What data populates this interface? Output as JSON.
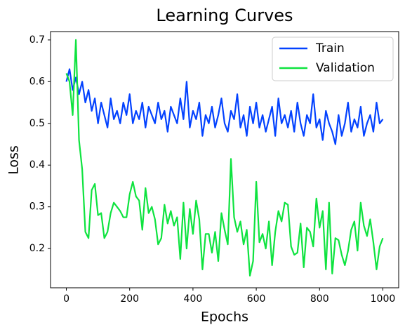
{
  "chart_data": {
    "type": "line",
    "title": "Learning Curves",
    "x_label": "Epochs",
    "y_label": "Loss",
    "x": [
      0,
      10,
      20,
      30,
      40,
      50,
      60,
      70,
      80,
      90,
      100,
      110,
      120,
      130,
      140,
      150,
      160,
      170,
      180,
      190,
      200,
      210,
      220,
      230,
      240,
      250,
      260,
      270,
      280,
      290,
      300,
      310,
      320,
      330,
      340,
      350,
      360,
      370,
      380,
      390,
      400,
      410,
      420,
      430,
      440,
      450,
      460,
      470,
      480,
      490,
      500,
      510,
      520,
      530,
      540,
      550,
      560,
      570,
      580,
      590,
      600,
      610,
      620,
      630,
      640,
      650,
      660,
      670,
      680,
      690,
      700,
      710,
      720,
      730,
      740,
      750,
      760,
      770,
      780,
      790,
      800,
      810,
      820,
      830,
      840,
      850,
      860,
      870,
      880,
      890,
      900,
      910,
      920,
      930,
      940,
      950,
      960,
      970,
      980,
      990,
      1000
    ],
    "series": [
      {
        "name": "Train",
        "color": "#0342ff",
        "values": [
          0.6,
          0.63,
          0.58,
          0.61,
          0.57,
          0.6,
          0.55,
          0.58,
          0.53,
          0.56,
          0.5,
          0.55,
          0.52,
          0.49,
          0.56,
          0.51,
          0.53,
          0.5,
          0.55,
          0.52,
          0.57,
          0.5,
          0.53,
          0.51,
          0.55,
          0.49,
          0.54,
          0.52,
          0.5,
          0.55,
          0.51,
          0.53,
          0.48,
          0.54,
          0.52,
          0.5,
          0.56,
          0.51,
          0.6,
          0.49,
          0.53,
          0.51,
          0.55,
          0.47,
          0.52,
          0.5,
          0.54,
          0.49,
          0.52,
          0.56,
          0.5,
          0.48,
          0.53,
          0.51,
          0.57,
          0.49,
          0.52,
          0.47,
          0.54,
          0.5,
          0.55,
          0.49,
          0.52,
          0.48,
          0.51,
          0.54,
          0.47,
          0.56,
          0.5,
          0.52,
          0.49,
          0.53,
          0.48,
          0.55,
          0.5,
          0.47,
          0.52,
          0.5,
          0.57,
          0.49,
          0.51,
          0.46,
          0.53,
          0.5,
          0.48,
          0.45,
          0.52,
          0.47,
          0.5,
          0.55,
          0.48,
          0.51,
          0.49,
          0.54,
          0.47,
          0.5,
          0.52,
          0.48,
          0.55,
          0.5,
          0.51
        ]
      },
      {
        "name": "Validation",
        "color": "#0ee33f",
        "values": [
          0.62,
          0.6,
          0.52,
          0.7,
          0.46,
          0.39,
          0.24,
          0.225,
          0.34,
          0.355,
          0.28,
          0.285,
          0.225,
          0.24,
          0.285,
          0.31,
          0.3,
          0.29,
          0.275,
          0.275,
          0.33,
          0.36,
          0.325,
          0.315,
          0.245,
          0.345,
          0.285,
          0.3,
          0.27,
          0.21,
          0.225,
          0.305,
          0.26,
          0.29,
          0.255,
          0.275,
          0.175,
          0.31,
          0.2,
          0.295,
          0.235,
          0.315,
          0.27,
          0.15,
          0.235,
          0.235,
          0.19,
          0.24,
          0.17,
          0.285,
          0.245,
          0.21,
          0.415,
          0.275,
          0.24,
          0.265,
          0.21,
          0.245,
          0.135,
          0.17,
          0.36,
          0.215,
          0.235,
          0.2,
          0.265,
          0.16,
          0.24,
          0.29,
          0.265,
          0.31,
          0.305,
          0.205,
          0.185,
          0.19,
          0.26,
          0.155,
          0.25,
          0.24,
          0.205,
          0.32,
          0.25,
          0.29,
          0.15,
          0.31,
          0.14,
          0.225,
          0.22,
          0.185,
          0.16,
          0.195,
          0.245,
          0.265,
          0.195,
          0.31,
          0.255,
          0.23,
          0.27,
          0.215,
          0.15,
          0.205,
          0.225
        ]
      }
    ],
    "xlim": [
      -50,
      1050
    ],
    "ylim": [
      0.106,
      0.72
    ],
    "xticks": [
      0,
      200,
      400,
      600,
      800,
      1000
    ],
    "yticks": [
      0.2,
      0.3,
      0.4,
      0.5,
      0.6,
      0.7
    ],
    "grid": false,
    "legend": "upper right"
  }
}
